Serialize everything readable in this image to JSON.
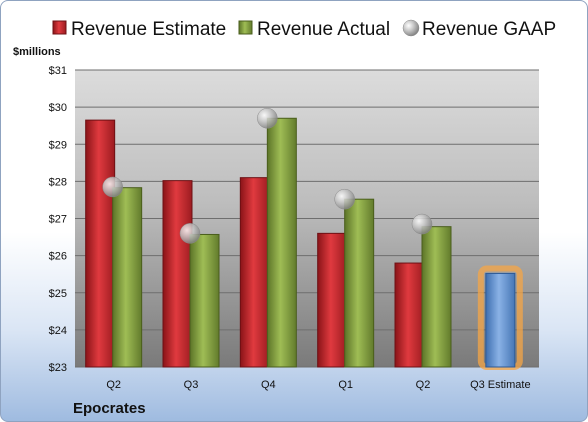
{
  "chart_data": {
    "type": "bar",
    "company": "Epocrates",
    "ylabel": "$millions",
    "ylim": [
      23,
      31
    ],
    "yticks": [
      "$23",
      "$24",
      "$25",
      "$26",
      "$27",
      "$28",
      "$29",
      "$30",
      "$31"
    ],
    "categories": [
      "Q2",
      "Q3",
      "Q4",
      "Q1",
      "Q2",
      "Q3 Estimate"
    ],
    "series": [
      {
        "name": "Revenue Estimate",
        "kind": "bar",
        "color": "#c0262b",
        "values": [
          29.65,
          28.02,
          28.1,
          26.6,
          25.8,
          null
        ]
      },
      {
        "name": "Revenue Actual",
        "kind": "bar",
        "color": "#7e9a3a",
        "values": [
          27.83,
          26.57,
          29.7,
          27.52,
          26.78,
          null
        ]
      },
      {
        "name": "Revenue GAAP",
        "kind": "point",
        "color": "#b0b0b0",
        "values": [
          27.85,
          26.6,
          29.7,
          27.52,
          26.85,
          null
        ]
      },
      {
        "name": "",
        "kind": "bar",
        "color": "#5b8fd0",
        "highlight": "#f5a545",
        "values": [
          null,
          null,
          null,
          null,
          null,
          25.52
        ]
      }
    ],
    "grid": true,
    "legend_position": "top"
  }
}
